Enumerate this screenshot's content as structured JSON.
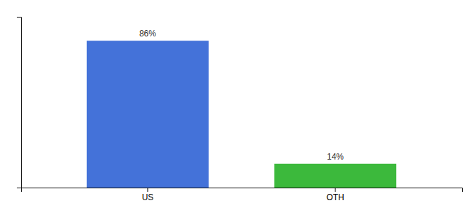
{
  "chart_data": {
    "type": "bar",
    "categories": [
      "US",
      "OTH"
    ],
    "values": [
      86,
      14
    ],
    "value_labels": [
      "86%",
      "14%"
    ],
    "colors": [
      "#4472d9",
      "#3cb93c"
    ],
    "ylim": [
      0,
      100
    ],
    "data_labels": true,
    "tick_labels": "x",
    "grid": false
  }
}
